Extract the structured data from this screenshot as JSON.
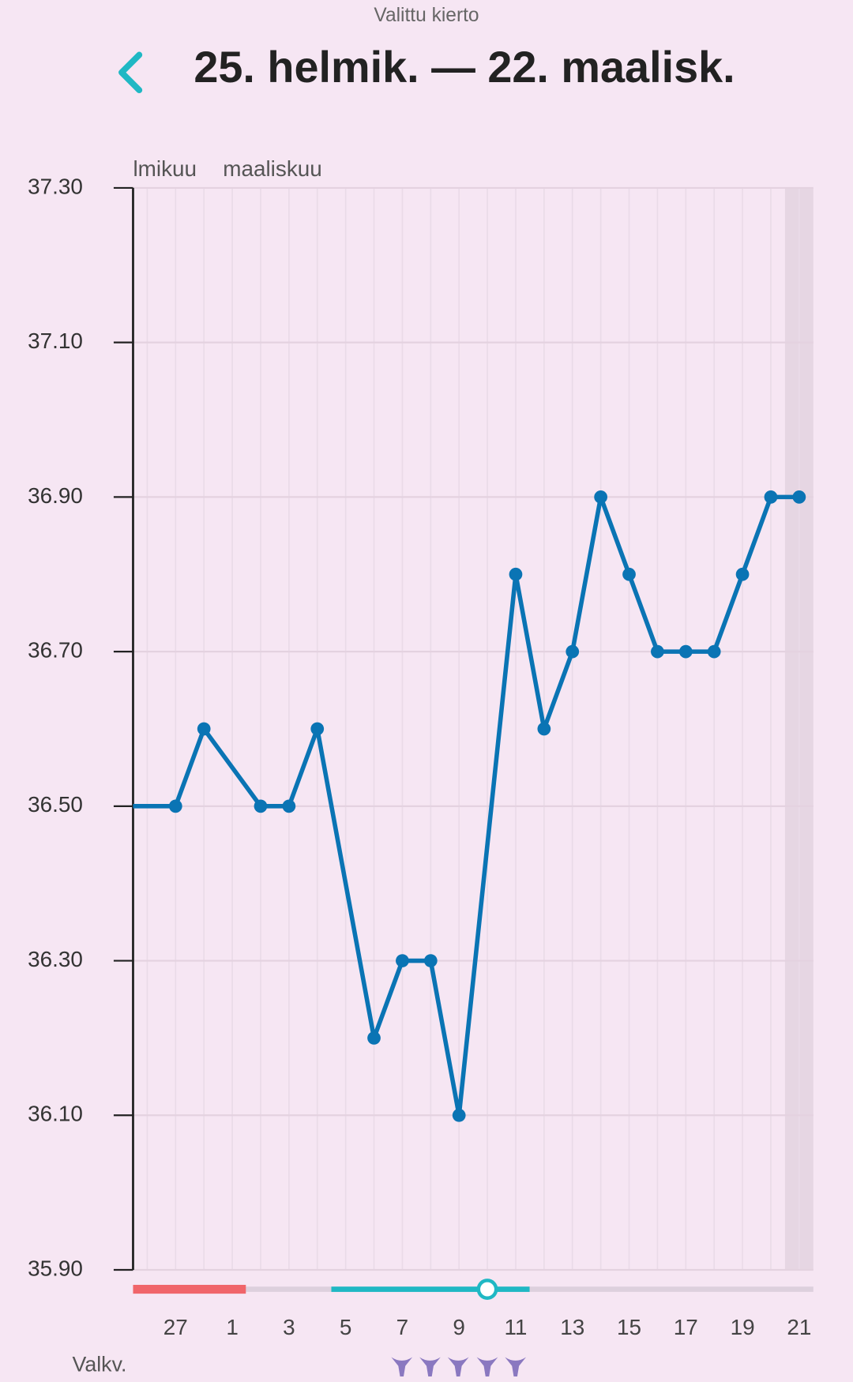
{
  "header": {
    "subtitle": "Valittu kierto",
    "title": "25. helmik. — 22. maalisk."
  },
  "chart_data": {
    "type": "line",
    "month_labels": [
      "lmikuu",
      "maaliskuu"
    ],
    "series": [
      {
        "color": "#0a74b4",
        "x": [
          1,
          3,
          4,
          6,
          7,
          8,
          10,
          11,
          12,
          13,
          15,
          16,
          17,
          18,
          19,
          20,
          21,
          22,
          23,
          24,
          25
        ],
        "values": [
          36.5,
          36.5,
          36.6,
          36.5,
          36.5,
          36.6,
          36.2,
          36.3,
          36.3,
          36.1,
          36.8,
          36.6,
          36.7,
          36.9,
          36.8,
          36.7,
          36.7,
          36.7,
          36.8,
          36.9,
          36.9
        ]
      }
    ],
    "xlim": [
      1.5,
      25.5
    ],
    "xticks": [
      {
        "value": 3,
        "label": "27"
      },
      {
        "value": 5,
        "label": "1"
      },
      {
        "value": 7,
        "label": "3"
      },
      {
        "value": 9,
        "label": "5"
      },
      {
        "value": 11,
        "label": "7"
      },
      {
        "value": 13,
        "label": "9"
      },
      {
        "value": 15,
        "label": "11"
      },
      {
        "value": 17,
        "label": "13"
      },
      {
        "value": 19,
        "label": "15"
      },
      {
        "value": 21,
        "label": "17"
      },
      {
        "value": 23,
        "label": "19"
      },
      {
        "value": 25,
        "label": "21"
      }
    ],
    "ylim": [
      35.9,
      37.3
    ],
    "yticks": [
      {
        "value": 35.9,
        "label": "35.90"
      },
      {
        "value": 36.1,
        "label": "36.10"
      },
      {
        "value": 36.3,
        "label": "36.30"
      },
      {
        "value": 36.5,
        "label": "36.50"
      },
      {
        "value": 36.7,
        "label": "36.70"
      },
      {
        "value": 36.9,
        "label": "36.90"
      },
      {
        "value": 37.1,
        "label": "37.10"
      },
      {
        "value": 37.3,
        "label": "37.30"
      }
    ],
    "grid": true,
    "row_label": "Valkv."
  }
}
